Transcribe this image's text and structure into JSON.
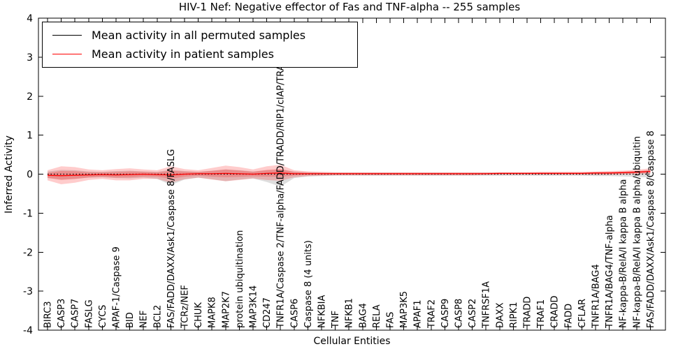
{
  "figure": {
    "title": "HIV-1 Nef: Negative effector of Fas and TNF-alpha -- 255 samples",
    "xlabel": "Cellular Entities",
    "ylabel": "Inferred Activity"
  },
  "legend": {
    "items": [
      {
        "label": "Mean activity in all permuted samples",
        "color": "#000000"
      },
      {
        "label": "Mean activity in patient samples",
        "color": "#ff0000"
      }
    ],
    "position": "upper left"
  },
  "chart_data": {
    "type": "line",
    "title": "HIV-1 Nef: Negative effector of Fas and TNF-alpha -- 255 samples",
    "xlabel": "Cellular Entities",
    "ylabel": "Inferred Activity",
    "ylim": [
      -4,
      4
    ],
    "yticks": [
      -4,
      -3,
      -2,
      -1,
      0,
      1,
      2,
      3,
      4
    ],
    "grid": false,
    "legend_position": "upper left",
    "categories": [
      "BIRC3",
      "CASP3",
      "CASP7",
      "FASLG",
      "CYCS",
      "APAF-1/Caspase 9",
      "BID",
      "NEF",
      "BCL2",
      "FAS/FADD/DAXX/Ask1/Caspase 8/FASLG",
      "TCRz/NEF",
      "CHUK",
      "MAPK8",
      "MAP2K7",
      "protein ubiquitination",
      "MAP3K14",
      "CD247",
      "TNFR1A/Caspase 2/TNF-alpha/FADD/TRADD/RIP1/cIAP/TRAF2/TRAF1",
      "CASP6",
      "Caspase 8 (4 units)",
      "NFKBIA",
      "TNF",
      "NFKB1",
      "BAG4",
      "RELA",
      "FAS",
      "MAP3K5",
      "APAF1",
      "TRAF2",
      "CASP9",
      "CASP8",
      "CASP2",
      "TNFRSF1A",
      "DAXX",
      "RIPK1",
      "TRADD",
      "TRAF1",
      "CRADD",
      "FADD",
      "CFLAR",
      "TNFR1A/BAG4",
      "TNFR1A/BAG4/TNF-alpha",
      "NF-kappa-B/RelA/I kappa B alpha",
      "NF-kappa-B/RelA/I kappa B alpha/ubiquitin",
      "FAS/FADD/DAXX/Ask1/Caspase 8/Caspase 8"
    ],
    "series": [
      {
        "name": "Mean activity in all permuted samples",
        "color": "#000000",
        "line_style": "dotted",
        "band_color": "rgba(0,0,0,0.13)",
        "values": [
          0,
          0,
          0,
          0,
          0,
          0,
          0,
          0,
          0,
          0,
          0,
          0,
          0,
          0,
          0,
          0,
          0,
          0,
          0,
          0,
          0,
          0,
          0,
          0,
          0,
          0,
          0,
          0,
          0,
          0,
          0,
          0,
          0,
          0,
          0,
          0,
          0,
          0,
          0,
          0,
          0,
          0,
          0,
          0,
          0
        ],
        "band_upper": [
          0.07,
          0.11,
          0.1,
          0.07,
          0.06,
          0.08,
          0.09,
          0.07,
          0.06,
          0.11,
          0.08,
          0.06,
          0.09,
          0.12,
          0.1,
          0.07,
          0.1,
          0.12,
          0.07,
          0.05,
          0.04,
          0.04,
          0.04,
          0.04,
          0.04,
          0.04,
          0.04,
          0.04,
          0.04,
          0.04,
          0.04,
          0.04,
          0.04,
          0.04,
          0.04,
          0.04,
          0.04,
          0.04,
          0.04,
          0.04,
          0.05,
          0.05,
          0.06,
          0.07,
          0.1
        ],
        "band_lower": [
          -0.1,
          -0.14,
          -0.12,
          -0.09,
          -0.08,
          -0.1,
          -0.11,
          -0.09,
          -0.12,
          -0.28,
          -0.14,
          -0.09,
          -0.13,
          -0.18,
          -0.14,
          -0.11,
          -0.2,
          -0.32,
          -0.1,
          -0.06,
          -0.05,
          -0.04,
          -0.04,
          -0.04,
          -0.04,
          -0.04,
          -0.04,
          -0.04,
          -0.04,
          -0.04,
          -0.04,
          -0.04,
          -0.04,
          -0.04,
          -0.04,
          -0.04,
          -0.04,
          -0.04,
          -0.04,
          -0.04,
          -0.05,
          -0.05,
          -0.06,
          -0.07,
          -0.09
        ]
      },
      {
        "name": "Mean activity in patient samples",
        "color": "#ff0000",
        "line_style": "solid",
        "band_color": "rgba(255,0,0,0.20)",
        "values": [
          -0.03,
          -0.04,
          -0.03,
          -0.02,
          -0.01,
          -0.02,
          -0.01,
          0,
          -0.01,
          -0.02,
          0,
          0.01,
          0.01,
          0.02,
          0.01,
          0,
          0.02,
          0.03,
          0.01,
          0.01,
          0.01,
          0.01,
          0.01,
          0.01,
          0.01,
          0.01,
          0.01,
          0.01,
          0.01,
          0.01,
          0.01,
          0.01,
          0.01,
          0.02,
          0.02,
          0.02,
          0.02,
          0.02,
          0.02,
          0.02,
          0.03,
          0.03,
          0.04,
          0.05,
          0.07
        ],
        "band_upper": [
          0.1,
          0.2,
          0.18,
          0.12,
          0.1,
          0.13,
          0.15,
          0.12,
          0.1,
          0.2,
          0.13,
          0.1,
          0.16,
          0.22,
          0.18,
          0.12,
          0.2,
          0.24,
          0.1,
          0.07,
          0.06,
          0.05,
          0.05,
          0.05,
          0.05,
          0.05,
          0.05,
          0.05,
          0.05,
          0.05,
          0.05,
          0.05,
          0.05,
          0.05,
          0.05,
          0.05,
          0.06,
          0.06,
          0.06,
          0.06,
          0.07,
          0.08,
          0.09,
          0.11,
          0.15
        ],
        "band_lower": [
          -0.16,
          -0.26,
          -0.22,
          -0.15,
          -0.12,
          -0.16,
          -0.16,
          -0.12,
          -0.12,
          -0.22,
          -0.13,
          -0.09,
          -0.14,
          -0.18,
          -0.15,
          -0.11,
          -0.15,
          -0.17,
          -0.08,
          -0.05,
          -0.04,
          -0.03,
          -0.03,
          -0.03,
          -0.03,
          -0.03,
          -0.03,
          -0.03,
          -0.03,
          -0.03,
          -0.03,
          -0.03,
          -0.02,
          -0.02,
          -0.02,
          -0.02,
          -0.02,
          -0.02,
          -0.02,
          -0.02,
          -0.02,
          -0.02,
          -0.01,
          0.0,
          0.01
        ]
      }
    ]
  }
}
